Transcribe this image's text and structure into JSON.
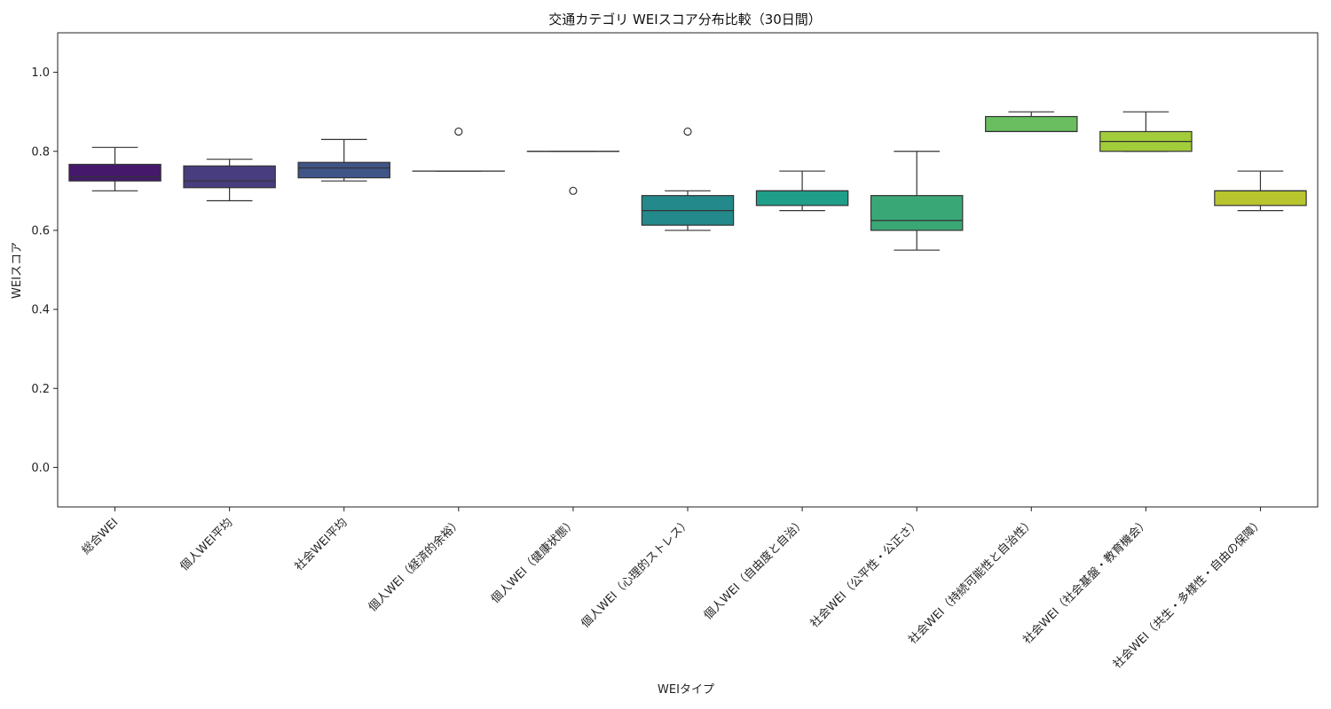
{
  "chart_data": {
    "type": "box",
    "title": "交通カテゴリ WEIスコア分布比較（30日間）",
    "xlabel": "WEIタイプ",
    "ylabel": "WEIスコア",
    "ylim": [
      -0.1,
      1.1
    ],
    "yticks": [
      "0.0",
      "0.2",
      "0.4",
      "0.6",
      "0.8",
      "1.0"
    ],
    "grid": false,
    "legend": "none",
    "categories": [
      "総合WEI",
      "個人WEI平均",
      "社会WEI平均",
      "個人WEI（経済的余裕）",
      "個人WEI（健康状態）",
      "個人WEI（心理的ストレス）",
      "個人WEI（自由度と自治）",
      "社会WEI（公平性・公正さ）",
      "社会WEI（持続可能性と自治性）",
      "社会WEI（社会基盤・教育機会）",
      "社会WEI（共生・多様性・自由の保障）"
    ],
    "boxes": [
      {
        "min": 0.7,
        "q1": 0.725,
        "median": 0.735,
        "q3": 0.767,
        "max": 0.81,
        "outliers": [],
        "color": "#45186b"
      },
      {
        "min": 0.675,
        "q1": 0.708,
        "median": 0.725,
        "q3": 0.763,
        "max": 0.78,
        "outliers": [],
        "color": "#483d7e"
      },
      {
        "min": 0.725,
        "q1": 0.733,
        "median": 0.758,
        "q3": 0.772,
        "max": 0.83,
        "outliers": [],
        "color": "#3f5588"
      },
      {
        "min": 0.75,
        "q1": 0.75,
        "median": 0.75,
        "q3": 0.75,
        "max": 0.75,
        "outliers": [
          0.85
        ],
        "color": "#346d8c"
      },
      {
        "min": 0.8,
        "q1": 0.8,
        "median": 0.8,
        "q3": 0.8,
        "max": 0.8,
        "outliers": [
          0.7
        ],
        "color": "#2b838c"
      },
      {
        "min": 0.6,
        "q1": 0.613,
        "median": 0.65,
        "q3": 0.688,
        "max": 0.7,
        "outliers": [
          0.85
        ],
        "color": "#23898a"
      },
      {
        "min": 0.65,
        "q1": 0.663,
        "median": 0.7,
        "q3": 0.7,
        "max": 0.75,
        "outliers": [],
        "color": "#1f9e89"
      },
      {
        "min": 0.55,
        "q1": 0.6,
        "median": 0.625,
        "q3": 0.688,
        "max": 0.8,
        "outliers": [],
        "color": "#3aa876"
      },
      {
        "min": 0.85,
        "q1": 0.85,
        "median": 0.85,
        "q3": 0.888,
        "max": 0.9,
        "outliers": [],
        "color": "#6abe5f"
      },
      {
        "min": 0.8,
        "q1": 0.8,
        "median": 0.825,
        "q3": 0.85,
        "max": 0.9,
        "outliers": [],
        "color": "#a2cc3a"
      },
      {
        "min": 0.65,
        "q1": 0.663,
        "median": 0.7,
        "q3": 0.7,
        "max": 0.75,
        "outliers": [],
        "color": "#b8c52f"
      }
    ]
  }
}
